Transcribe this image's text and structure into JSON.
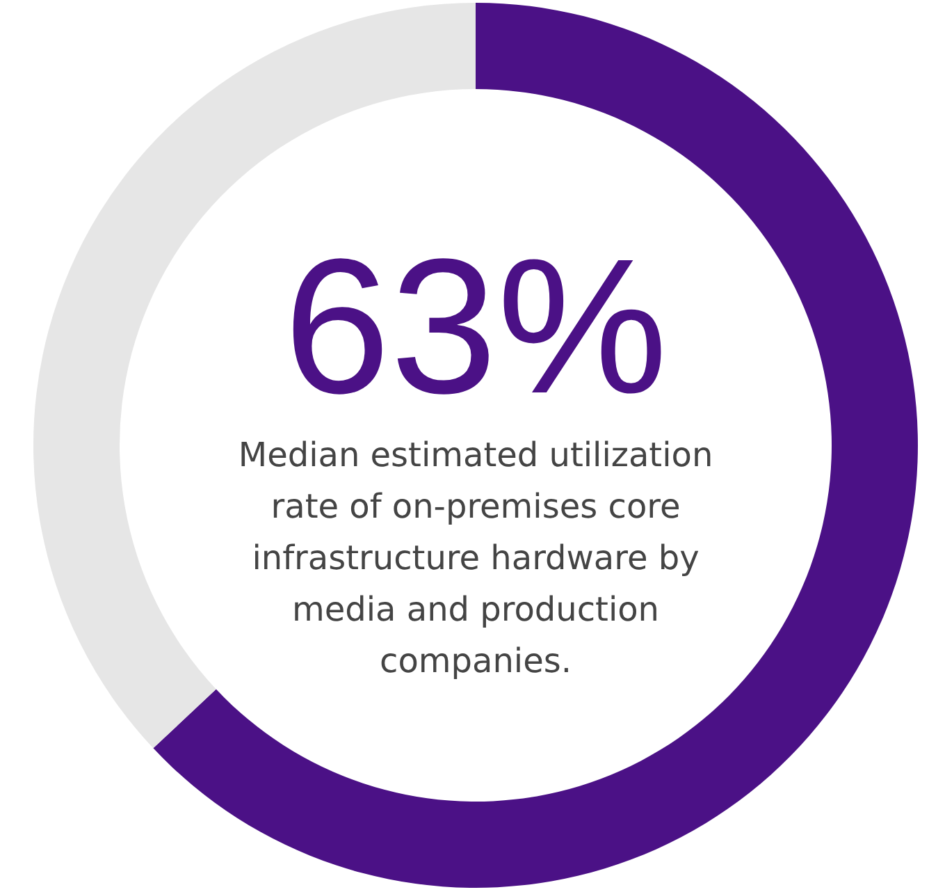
{
  "chart_data": {
    "type": "donut",
    "categories": [
      null,
      null
    ],
    "values": [
      63,
      37
    ],
    "colors": [
      "#4b1186",
      "#e6e6e6"
    ],
    "value_labels": [
      "63%",
      null
    ],
    "annotations": [
      "Median estimated utilization rate of on-premises core infrastructure hardware by media and production companies."
    ]
  }
}
